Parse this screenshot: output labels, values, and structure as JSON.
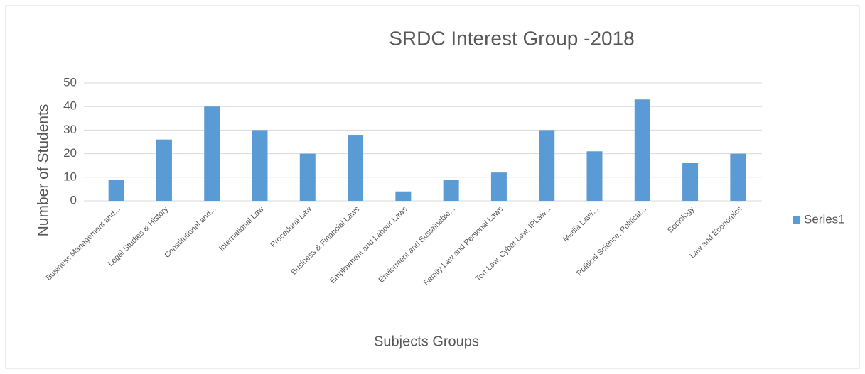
{
  "chart_data": {
    "type": "bar",
    "title": "SRDC Interest Group -2018",
    "x_label": "Subjects Groups",
    "y_label": "Number of Students",
    "categories": [
      "Business Management and...",
      "Legal Studies & History",
      "Constitutional and...",
      "International Law",
      "Procedural Law",
      "Business & Financial Laws",
      "Employment and Labour Laws",
      "Enviorment and Sustainable...",
      "Family Law and Personal Laws",
      "Tort Law, Cyber Law, IPLaw...",
      "Media Law/...",
      "Political Science, Political...",
      "Sociology",
      "Law and Economics"
    ],
    "series": [
      {
        "name": "Series1",
        "color": "#5b9bd5",
        "values": [
          9,
          26,
          40,
          30,
          20,
          28,
          4,
          9,
          12,
          30,
          21,
          43,
          16,
          20
        ]
      }
    ],
    "ylim": [
      0,
      50
    ],
    "yticks": [
      0,
      10,
      20,
      30,
      40,
      50
    ],
    "grid": true,
    "legend": "right"
  }
}
